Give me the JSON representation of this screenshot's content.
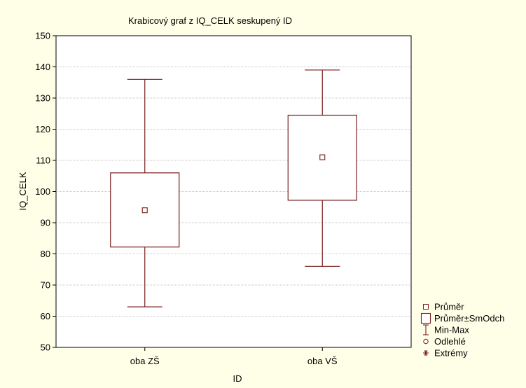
{
  "chart_data": {
    "type": "boxplot",
    "title": "Krabicový graf z IQ_CELK seskupený ID",
    "xlabel": "ID",
    "ylabel": "IQ_CELK",
    "ylim": [
      50,
      150
    ],
    "yticks": [
      50,
      60,
      70,
      80,
      90,
      100,
      110,
      120,
      130,
      140,
      150
    ],
    "grid": true,
    "legend_position": "bottom-right",
    "categories": [
      "oba ZŠ",
      "oba VŠ"
    ],
    "boxes": [
      {
        "category": "oba ZŠ",
        "mean": 94,
        "box_low": 82.2,
        "box_high": 106,
        "min": 63,
        "max": 136
      },
      {
        "category": "oba VŠ",
        "mean": 111,
        "box_low": 97.2,
        "box_high": 124.5,
        "min": 76,
        "max": 139
      }
    ],
    "legend": [
      {
        "symbol": "square-small",
        "label": "Průměr"
      },
      {
        "symbol": "square-large",
        "label": "Průměr±SmOdch"
      },
      {
        "symbol": "whisker",
        "label": "Min-Max"
      },
      {
        "symbol": "circle",
        "label": "Odlehlé"
      },
      {
        "symbol": "asterisk",
        "label": "Extrémy"
      }
    ],
    "colors": {
      "series": "#7A1F1F",
      "background": "#FFFEE6",
      "plot_bg": "#FFFFFF",
      "grid": "#8C8C8C"
    }
  }
}
